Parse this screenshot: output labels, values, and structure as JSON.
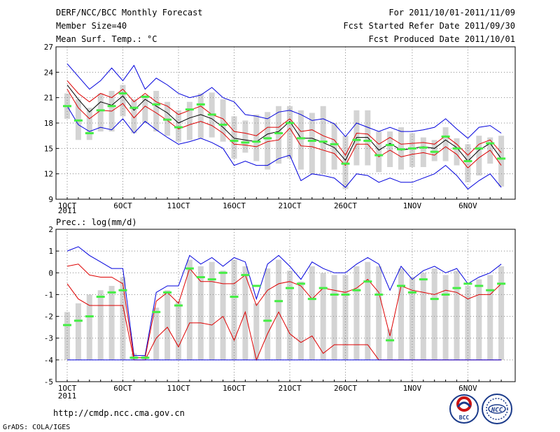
{
  "header": {
    "title": "DERF/NCC/BCC Monthly Forecast",
    "member_size": "Member Size=40",
    "variable": "Mean Surf. Temp.: °C",
    "period": "For 2011/10/01-2011/11/09",
    "started": "Fcst Started Refer Date 2011/09/30",
    "produced": "Fcst Produced Date 2011/10/01"
  },
  "footer": {
    "url": "http://cmdp.ncc.cma.gov.cn",
    "credit": "GrADS: COLA/IGES",
    "logo_bcc": "BCC",
    "logo_ncc": "NCC"
  },
  "colors": {
    "max_line": "#0000dd",
    "upper_line": "#dd0000",
    "mean_line": "#000000",
    "obs_marker": "#44ee44",
    "spread_bar": "#d4d4d4",
    "grid": "#888888"
  },
  "chart_data": [
    {
      "type": "line",
      "ylabel": "Mean Surf. Temp.: °C",
      "ylim": [
        9,
        27
      ],
      "yticks": [
        9,
        12,
        15,
        18,
        21,
        24,
        27
      ],
      "xtick_labels": [
        "1OCT",
        "6OCT",
        "11OCT",
        "16OCT",
        "21OCT",
        "26OCT",
        "1NOV",
        "6NOV"
      ],
      "xtick_days": [
        1,
        6,
        11,
        16,
        21,
        26,
        32,
        37
      ],
      "year_label": "2011",
      "days": [
        1,
        2,
        3,
        4,
        5,
        6,
        7,
        8,
        9,
        10,
        11,
        12,
        13,
        14,
        15,
        16,
        17,
        18,
        19,
        20,
        21,
        22,
        23,
        24,
        25,
        26,
        27,
        28,
        29,
        30,
        31,
        32,
        33,
        34,
        35,
        36,
        37,
        38,
        39,
        40
      ],
      "series": [
        {
          "name": "max",
          "values": [
            25.0,
            23.5,
            22.0,
            23.0,
            24.5,
            23.0,
            24.8,
            22.0,
            23.3,
            22.5,
            21.5,
            21.0,
            21.3,
            22.2,
            21.0,
            20.5,
            19.0,
            18.8,
            18.5,
            19.3,
            19.5,
            19.0,
            18.3,
            18.5,
            17.9,
            16.4,
            18.0,
            17.5,
            17.0,
            17.5,
            17.0,
            17.0,
            17.2,
            17.5,
            18.5,
            17.3,
            16.2,
            17.5,
            17.7,
            16.8
          ]
        },
        {
          "name": "upper",
          "values": [
            23.0,
            21.5,
            20.5,
            21.5,
            21.0,
            22.0,
            20.5,
            21.5,
            20.5,
            20.0,
            19.0,
            19.5,
            20.0,
            19.0,
            18.5,
            17.0,
            16.8,
            16.5,
            17.5,
            17.5,
            18.5,
            17.0,
            17.2,
            16.5,
            16.0,
            14.2,
            16.8,
            16.7,
            15.5,
            16.3,
            15.5,
            15.6,
            15.7,
            15.5,
            16.5,
            15.5,
            14.2,
            15.5,
            16.0,
            14.5
          ]
        },
        {
          "name": "mean",
          "values": [
            22.5,
            20.8,
            19.3,
            20.5,
            20.1,
            21.2,
            19.5,
            20.8,
            20.0,
            19.2,
            18.0,
            18.6,
            19.0,
            18.5,
            17.5,
            16.2,
            16.0,
            15.8,
            16.7,
            17.0,
            18.2,
            16.2,
            16.2,
            15.7,
            15.1,
            13.6,
            16.3,
            16.3,
            14.8,
            15.6,
            14.8,
            15.0,
            15.2,
            15.0,
            16.0,
            15.1,
            13.5,
            14.8,
            15.6,
            13.8
          ]
        },
        {
          "name": "lower",
          "values": [
            22.0,
            19.8,
            18.5,
            19.5,
            19.4,
            20.3,
            18.6,
            20.0,
            19.2,
            18.3,
            17.3,
            17.8,
            18.2,
            17.7,
            16.8,
            15.5,
            15.4,
            15.2,
            15.8,
            16.0,
            17.4,
            15.3,
            15.2,
            14.8,
            14.4,
            13.0,
            15.5,
            15.5,
            14.0,
            14.8,
            14.0,
            14.3,
            14.5,
            14.2,
            15.2,
            14.3,
            12.7,
            13.9,
            14.8,
            13.0
          ]
        },
        {
          "name": "min",
          "values": [
            20.0,
            17.8,
            17.0,
            17.5,
            17.2,
            18.5,
            16.8,
            18.2,
            17.2,
            16.3,
            15.5,
            15.8,
            16.2,
            15.7,
            15.0,
            13.0,
            13.5,
            13.0,
            13.0,
            13.8,
            14.2,
            11.2,
            12.0,
            11.8,
            11.5,
            10.4,
            12.0,
            11.8,
            11.0,
            11.5,
            11.0,
            11.0,
            11.5,
            12.0,
            13.0,
            11.8,
            10.2,
            11.2,
            12.0,
            10.4
          ]
        }
      ],
      "obs": [
        20.0,
        18.3,
        16.8,
        19.5,
        20.0,
        21.5,
        19.8,
        21.1,
        20.2,
        18.4,
        17.5,
        19.6,
        20.2,
        19.0,
        17.8,
        15.9,
        15.7,
        15.8,
        16.2,
        16.8,
        18.0,
        16.2,
        15.9,
        15.8,
        15.5,
        13.2,
        16.0,
        15.9,
        14.2,
        15.4,
        14.9,
        15.0,
        15.1,
        14.6,
        16.4,
        15.0,
        13.5,
        15.0,
        15.6,
        13.8
      ],
      "spread_low": [
        18.5,
        16.0,
        16.0,
        17.0,
        17.0,
        18.8,
        16.8,
        18.0,
        17.0,
        16.5,
        15.8,
        16.0,
        16.2,
        16.3,
        15.8,
        13.8,
        14.5,
        13.5,
        12.5,
        13.2,
        13.8,
        12.5,
        12.0,
        12.0,
        12.5,
        10.2,
        13.0,
        13.0,
        12.2,
        12.8,
        12.5,
        12.8,
        12.8,
        13.5,
        13.5,
        13.0,
        11.0,
        11.8,
        13.2,
        10.5
      ],
      "spread_high": [
        21.5,
        20.8,
        19.8,
        21.5,
        21.8,
        22.5,
        20.8,
        21.3,
        21.8,
        20.5,
        19.5,
        20.5,
        21.5,
        21.6,
        20.8,
        18.8,
        18.3,
        19.0,
        19.3,
        20.0,
        20.0,
        19.5,
        19.2,
        20.0,
        18.0,
        16.5,
        19.5,
        19.5,
        17.0,
        17.0,
        17.5,
        16.8,
        16.3,
        16.0,
        17.5,
        16.2,
        15.5,
        16.5,
        16.3,
        16.5
      ]
    },
    {
      "type": "line",
      "ylabel": "Prec.: log(mm/d)",
      "ylim": [
        -5,
        2
      ],
      "yticks": [
        -5,
        -4,
        -3,
        -2,
        -1,
        0,
        1,
        2
      ],
      "xtick_labels": [
        "1OCT",
        "6OCT",
        "11OCT",
        "16OCT",
        "21OCT",
        "26OCT",
        "1NOV",
        "6NOV"
      ],
      "xtick_days": [
        1,
        6,
        11,
        16,
        21,
        26,
        32,
        37
      ],
      "year_label": "2011",
      "days": [
        1,
        2,
        3,
        4,
        5,
        6,
        7,
        8,
        9,
        10,
        11,
        12,
        13,
        14,
        15,
        16,
        17,
        18,
        19,
        20,
        21,
        22,
        23,
        24,
        25,
        26,
        27,
        28,
        29,
        30,
        31,
        32,
        33,
        34,
        35,
        36,
        37,
        38,
        39,
        40
      ],
      "series": [
        {
          "name": "max",
          "values": [
            1.0,
            1.2,
            0.8,
            0.5,
            0.2,
            0.2,
            -3.8,
            -3.8,
            -0.9,
            -0.6,
            -0.6,
            0.8,
            0.4,
            0.7,
            0.3,
            0.7,
            0.5,
            -1.2,
            0.4,
            0.8,
            0.3,
            -0.3,
            0.5,
            0.2,
            0.0,
            0.0,
            0.4,
            0.7,
            0.4,
            -0.8,
            0.3,
            -0.3,
            0.1,
            0.3,
            0.0,
            0.2,
            -0.5,
            -0.2,
            0.0,
            0.4
          ]
        },
        {
          "name": "upper",
          "values": [
            0.3,
            0.4,
            -0.1,
            -0.2,
            -0.2,
            -0.5,
            -3.9,
            -3.9,
            -1.3,
            -0.9,
            -1.4,
            0.2,
            -0.4,
            -0.4,
            -0.5,
            -0.5,
            -0.1,
            -1.5,
            -0.8,
            -0.5,
            -0.4,
            -0.6,
            -1.2,
            -0.7,
            -0.8,
            -0.9,
            -0.7,
            -0.3,
            -0.9,
            -2.9,
            -0.6,
            -0.8,
            -0.9,
            -1.0,
            -0.8,
            -0.9,
            -1.2,
            -1.0,
            -1.0,
            -0.5
          ]
        },
        {
          "name": "lower",
          "values": [
            -0.5,
            -1.2,
            -1.5,
            -1.5,
            -1.5,
            -1.5,
            -4.0,
            -4.0,
            -3.0,
            -2.5,
            -3.4,
            -2.3,
            -2.3,
            -2.4,
            -2.0,
            -3.1,
            -1.8,
            -4.0,
            -2.8,
            -1.8,
            -2.8,
            -3.2,
            -2.9,
            -3.7,
            -3.3,
            -3.3,
            -3.3,
            -3.3,
            -4.0,
            -4.0,
            -4.0,
            -4.0,
            -4.0,
            -4.0,
            -4.0,
            -4.0,
            -4.0,
            -4.0,
            -4.0,
            -4.0
          ]
        },
        {
          "name": "min",
          "values": [
            -4.0,
            -4.0,
            -4.0,
            -4.0,
            -4.0,
            -4.0,
            -4.0,
            -4.0,
            -4.0,
            -4.0,
            -4.0,
            -4.0,
            -4.0,
            -4.0,
            -4.0,
            -4.0,
            -4.0,
            -4.0,
            -4.0,
            -4.0,
            -4.0,
            -4.0,
            -4.0,
            -4.0,
            -4.0,
            -4.0,
            -4.0,
            -4.0,
            -4.0,
            -4.0,
            -4.0,
            -4.0,
            -4.0,
            -4.0,
            -4.0,
            -4.0,
            -4.0,
            -4.0,
            -4.0,
            -4.0
          ]
        }
      ],
      "obs": [
        -2.4,
        -2.2,
        -2.0,
        -1.1,
        -0.9,
        -0.8,
        -3.9,
        -3.9,
        -1.8,
        -0.9,
        -1.5,
        0.2,
        -0.2,
        -0.3,
        0.0,
        -1.1,
        -0.1,
        -0.6,
        -2.2,
        -1.3,
        -0.7,
        -0.5,
        -1.2,
        -0.7,
        -1.0,
        -1.0,
        -0.8,
        -0.4,
        -1.0,
        -3.1,
        -0.6,
        -0.9,
        -0.3,
        -1.2,
        -1.0,
        -0.7,
        -0.5,
        -0.6,
        -0.8,
        -0.5
      ],
      "spread_low": [
        -4,
        -4,
        -4,
        -4,
        -4,
        -4,
        -4,
        -4,
        -4,
        -4,
        -4,
        -4,
        -4,
        -4,
        -4,
        -4,
        -4,
        -4,
        -4,
        -4,
        -4,
        -4,
        -4,
        -4,
        -4,
        -4,
        -4,
        -4,
        -4,
        -4,
        -4,
        -4,
        -4,
        -4,
        -4,
        -4,
        -4,
        -4,
        -4,
        -4
      ],
      "spread_high": [
        -1.8,
        -1.4,
        -1.0,
        -0.8,
        -0.6,
        -0.2,
        -3.7,
        -3.8,
        -1.6,
        -0.8,
        -1.3,
        0.6,
        0.3,
        0.5,
        0.1,
        0.6,
        0.3,
        -1.4,
        0.2,
        0.6,
        0.1,
        -0.4,
        0.3,
        0.0,
        -0.1,
        -0.1,
        0.3,
        0.5,
        0.3,
        -2.6,
        0.2,
        -0.2,
        0.0,
        0.2,
        -0.1,
        0.1,
        -0.6,
        -0.3,
        -0.1,
        0.3
      ]
    }
  ]
}
